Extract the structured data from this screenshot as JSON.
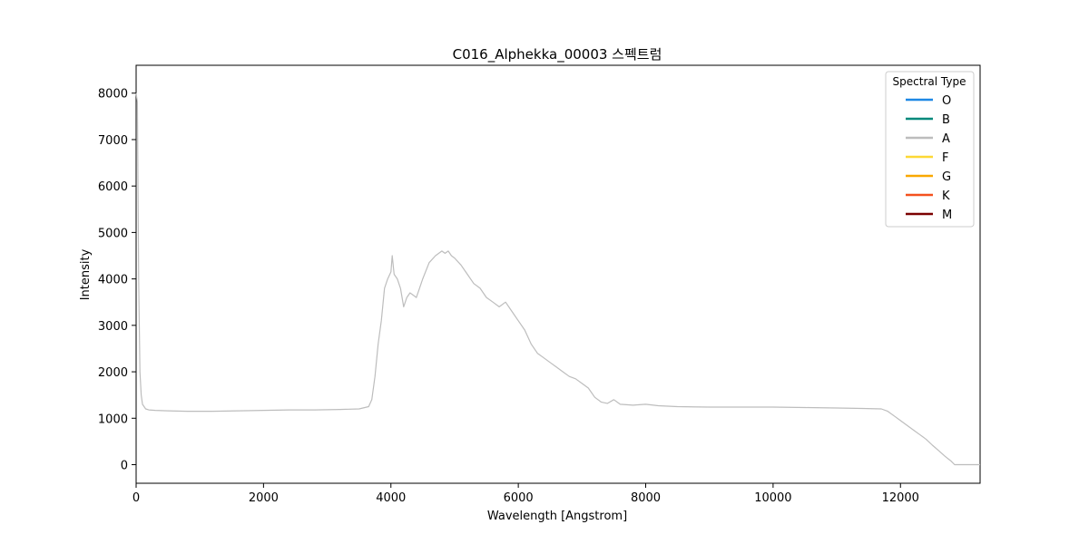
{
  "chart_data": {
    "type": "line",
    "title": "C016_Alphekka_00003 스펙트럼",
    "xlabel": "Wavelength [Angstrom]",
    "ylabel": "Intensity",
    "xlim": [
      0,
      13250
    ],
    "ylim": [
      -400,
      8600
    ],
    "xticks": [
      0,
      2000,
      4000,
      6000,
      8000,
      10000,
      12000
    ],
    "yticks": [
      0,
      1000,
      2000,
      3000,
      4000,
      5000,
      6000,
      7000,
      8000
    ],
    "grid": false,
    "legend": {
      "title": "Spectral Type",
      "placement": "top-right",
      "entries": [
        {
          "label": "O",
          "color": "#1e88e5"
        },
        {
          "label": "B",
          "color": "#00897b"
        },
        {
          "label": "A",
          "color": "#bdbdbd"
        },
        {
          "label": "F",
          "color": "#fdd835"
        },
        {
          "label": "G",
          "color": "#f9a800"
        },
        {
          "label": "K",
          "color": "#f4511e"
        },
        {
          "label": "M",
          "color": "#7b0000"
        }
      ]
    },
    "series": [
      {
        "name": "A",
        "color": "#bdbdbd",
        "x": [
          0,
          20,
          40,
          60,
          80,
          100,
          150,
          200,
          300,
          500,
          800,
          1200,
          1600,
          2000,
          2400,
          2800,
          3200,
          3500,
          3650,
          3700,
          3750,
          3800,
          3850,
          3900,
          3950,
          4000,
          4020,
          4050,
          4100,
          4150,
          4200,
          4250,
          4300,
          4350,
          4400,
          4450,
          4500,
          4600,
          4700,
          4800,
          4850,
          4900,
          4950,
          5000,
          5100,
          5200,
          5300,
          5400,
          5500,
          5600,
          5700,
          5800,
          5900,
          6000,
          6100,
          6200,
          6300,
          6400,
          6500,
          6600,
          6700,
          6800,
          6900,
          7000,
          7100,
          7200,
          7300,
          7400,
          7500,
          7600,
          7800,
          8000,
          8200,
          8500,
          9000,
          9500,
          10000,
          10500,
          11000,
          11400,
          11700,
          11800,
          11900,
          12000,
          12100,
          12200,
          12300,
          12400,
          12500,
          12600,
          12700,
          12800,
          12850,
          12900,
          13000,
          13100,
          13250
        ],
        "y": [
          8000,
          7800,
          4000,
          2000,
          1500,
          1300,
          1200,
          1180,
          1170,
          1160,
          1150,
          1150,
          1160,
          1170,
          1180,
          1180,
          1190,
          1200,
          1250,
          1400,
          1900,
          2600,
          3100,
          3800,
          4000,
          4150,
          4500,
          4100,
          4000,
          3800,
          3400,
          3600,
          3700,
          3650,
          3600,
          3800,
          4000,
          4350,
          4500,
          4600,
          4550,
          4600,
          4500,
          4450,
          4300,
          4100,
          3900,
          3800,
          3600,
          3500,
          3400,
          3500,
          3300,
          3100,
          2900,
          2600,
          2400,
          2300,
          2200,
          2100,
          2000,
          1900,
          1850,
          1750,
          1650,
          1450,
          1350,
          1320,
          1400,
          1300,
          1280,
          1300,
          1270,
          1250,
          1240,
          1240,
          1240,
          1230,
          1220,
          1210,
          1200,
          1150,
          1050,
          950,
          850,
          750,
          650,
          550,
          420,
          300,
          180,
          70,
          0,
          0,
          0,
          0,
          0
        ]
      }
    ]
  }
}
